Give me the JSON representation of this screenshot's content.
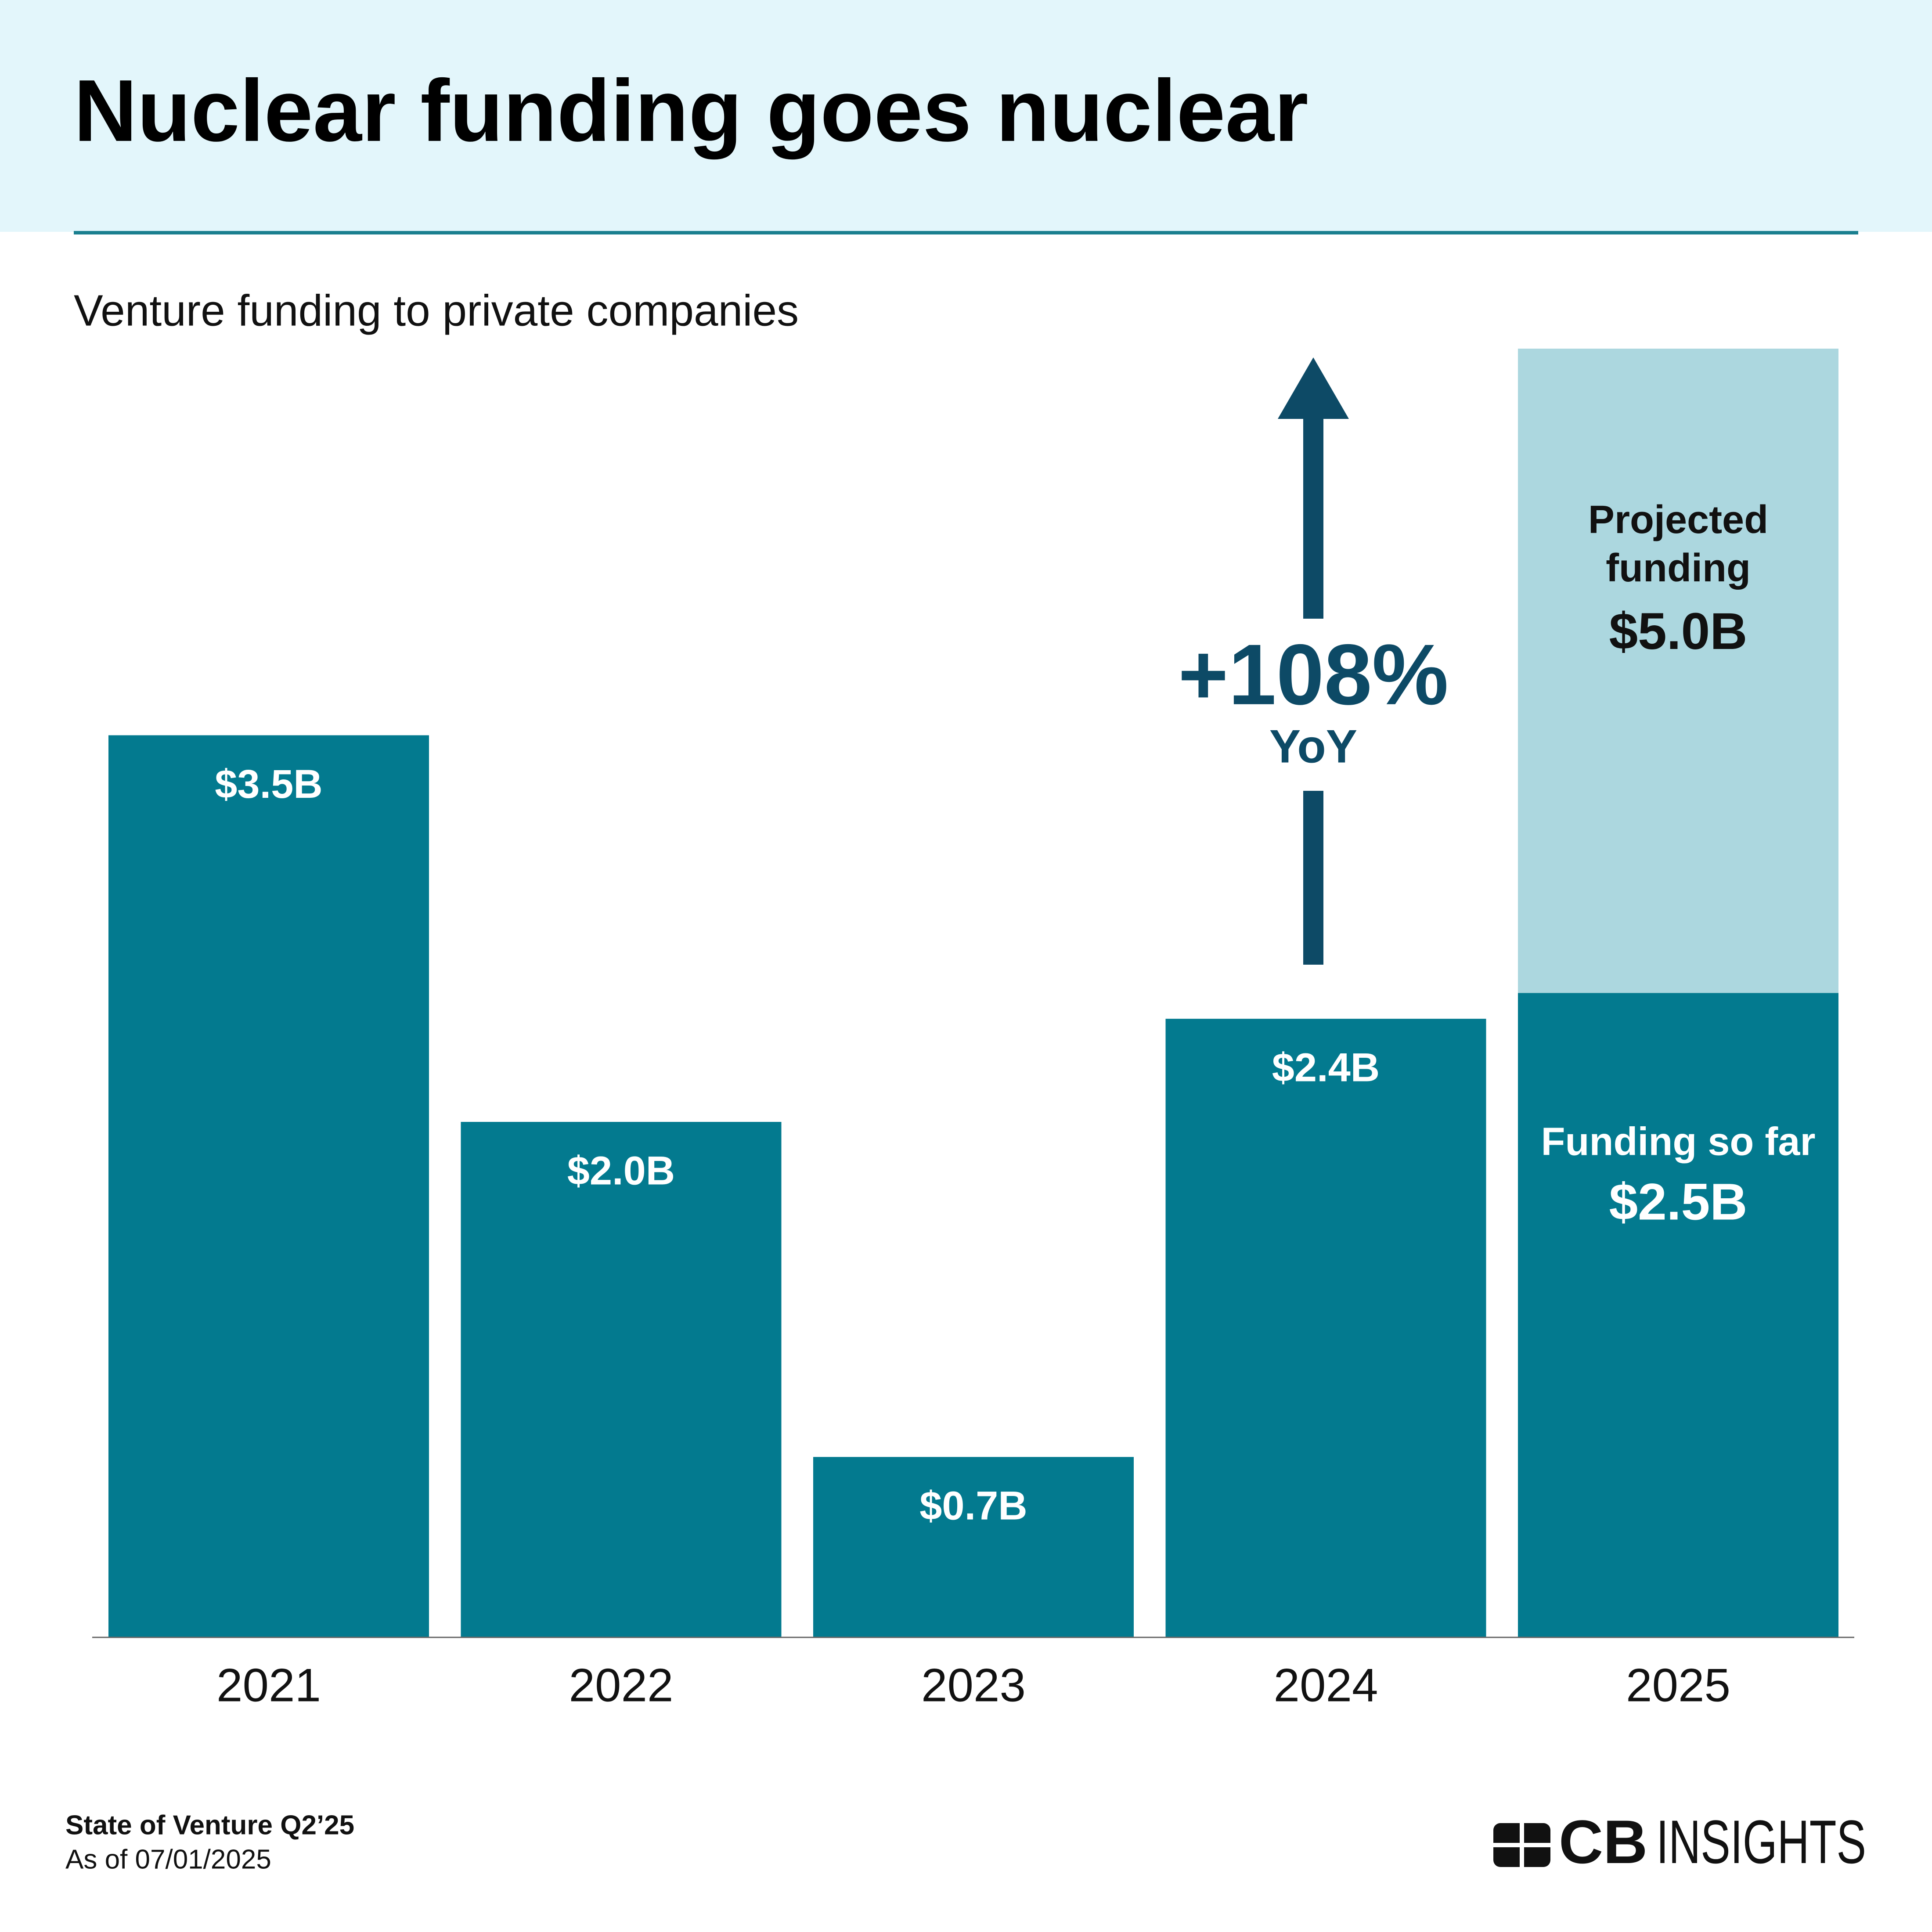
{
  "chart_data": {
    "type": "bar",
    "title": "Nuclear funding goes nuclear",
    "subtitle": "Venture funding to private companies",
    "categories": [
      "2021",
      "2022",
      "2023",
      "2024",
      "2025"
    ],
    "series": [
      {
        "name": "Funding so far",
        "color": "#037a8f",
        "values": [
          3.5,
          2.0,
          0.7,
          2.4,
          2.5
        ],
        "value_labels": [
          "$3.5B",
          "$2.0B",
          "$0.7B",
          "$2.4B",
          "$2.5B"
        ]
      },
      {
        "name": "Projected funding",
        "color": "#acd7df",
        "values": [
          null,
          null,
          null,
          null,
          5.0
        ],
        "value_labels": [
          null,
          null,
          null,
          null,
          "$5.0B"
        ]
      }
    ],
    "annotation": {
      "text": "+108%",
      "subtext": "YoY"
    }
  },
  "footer": {
    "source": "State of Venture Q2’25",
    "date": "As of 07/01/2025"
  },
  "logo": {
    "bold": "CB",
    "light": "INSIGHTS"
  }
}
